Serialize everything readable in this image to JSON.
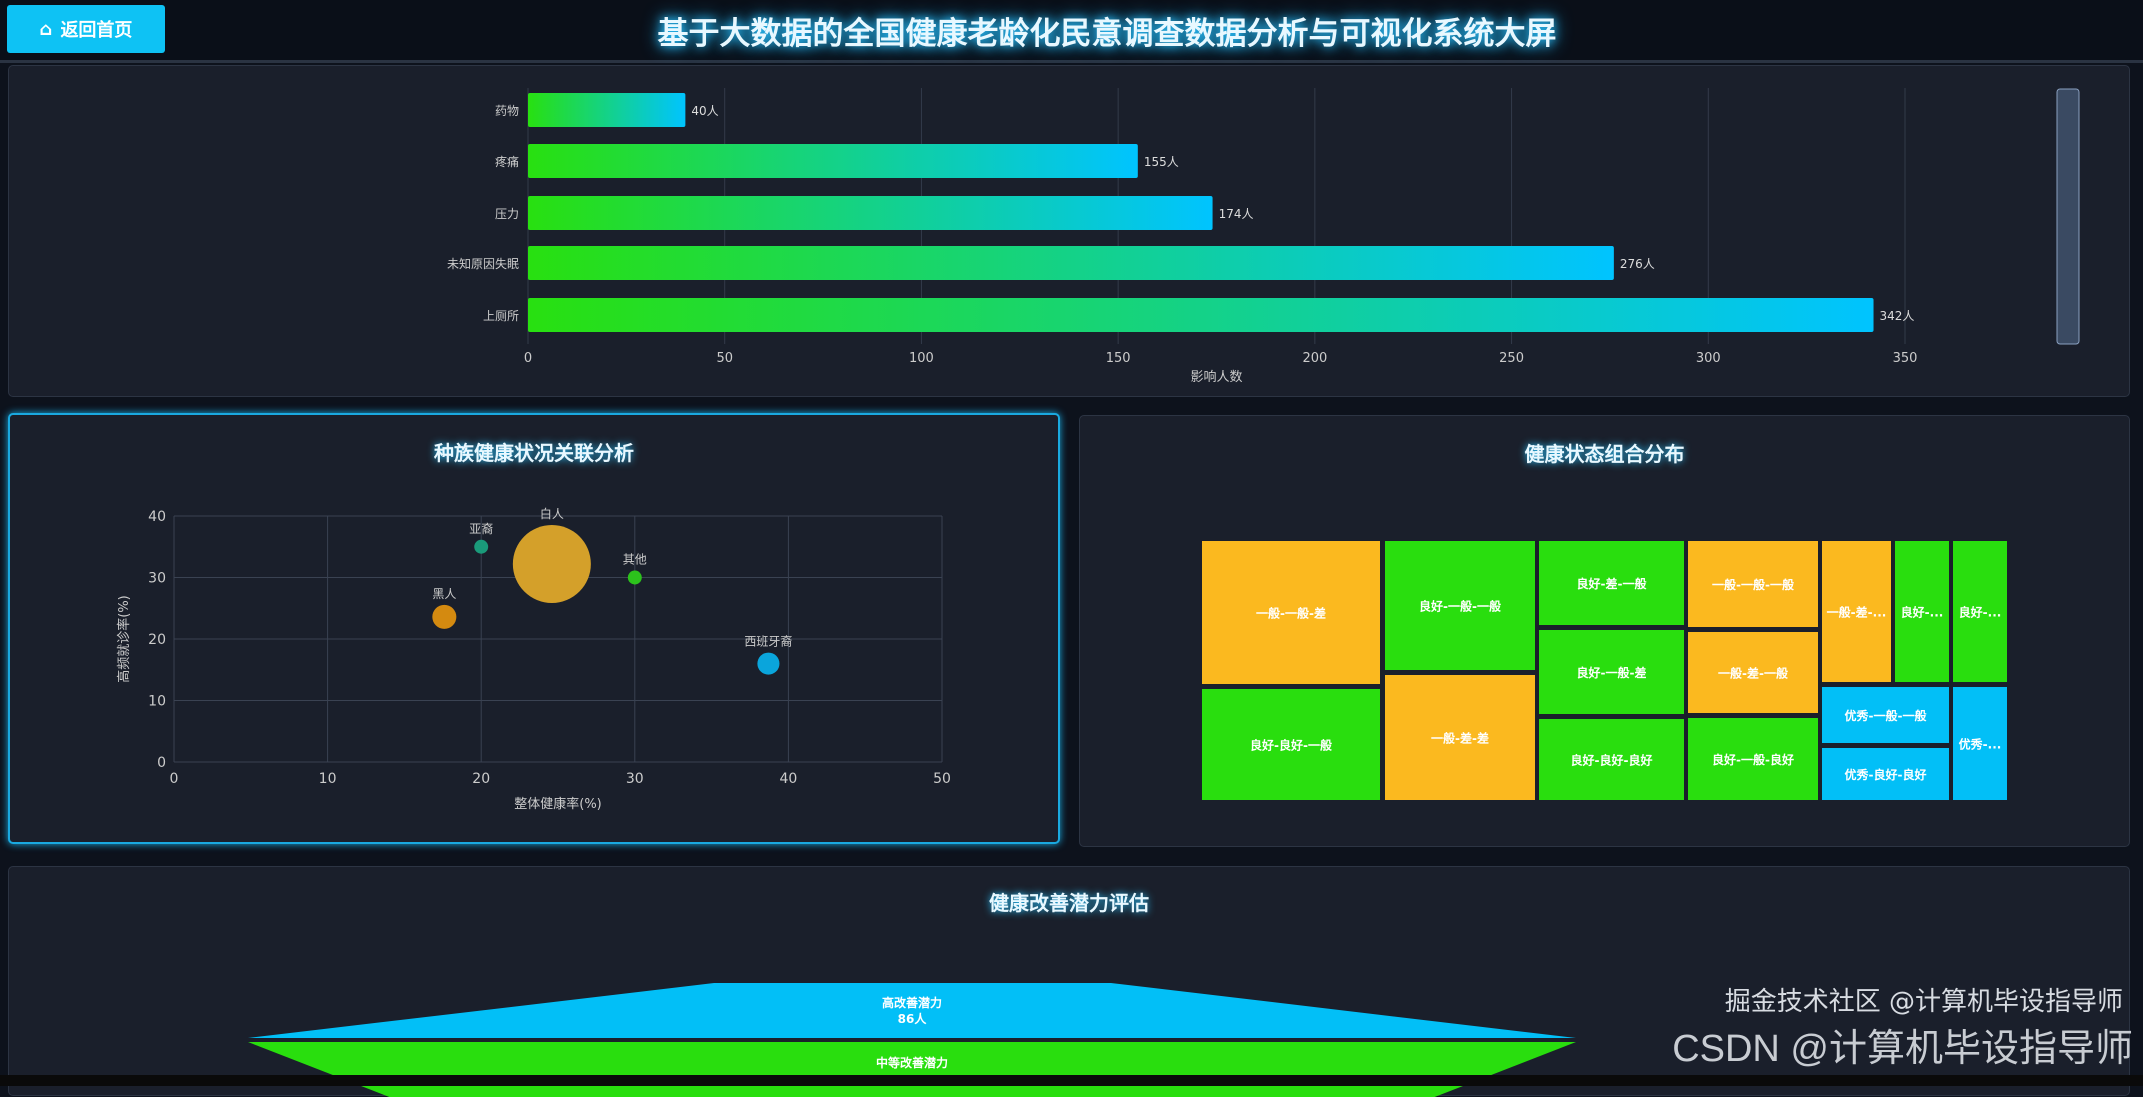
{
  "header": {
    "home_label": "返回首页",
    "home_icon": "home-icon",
    "title": "基于大数据的全国健康老龄化民意调查数据分析与可视化系统大屏"
  },
  "bar_panel": {
    "chart_data": {
      "type": "bar",
      "orientation": "horizontal",
      "categories": [
        "药物",
        "疼痛",
        "压力",
        "未知原因失眠",
        "上厕所"
      ],
      "values": [
        40,
        155,
        174,
        276,
        342
      ],
      "data_labels": [
        "40人",
        "155人",
        "174人",
        "276人",
        "342人"
      ],
      "xlabel": "影响人数",
      "xlim": [
        0,
        350
      ],
      "xticks": [
        "0",
        "50",
        "100",
        "150",
        "200",
        "250",
        "300",
        "350"
      ],
      "gradient": [
        "#28e010",
        "#00c4ff"
      ],
      "grid": true
    }
  },
  "scatter_panel": {
    "title": "种族健康状况关联分析",
    "chart_data": {
      "type": "scatter",
      "xlabel": "整体健康率(%)",
      "ylabel": "高频就诊率(%)",
      "xlim": [
        0,
        50
      ],
      "ylim": [
        0,
        40
      ],
      "xticks": [
        "0",
        "10",
        "20",
        "30",
        "40",
        "50"
      ],
      "yticks": [
        "0",
        "10",
        "20",
        "30",
        "40"
      ],
      "points": [
        {
          "name": "亚裔",
          "x": 20,
          "y": 35,
          "size": 3.2,
          "color": "#1a9a7a"
        },
        {
          "name": "白人",
          "x": 24.6,
          "y": 32.2,
          "size": 100,
          "color": "#d4a02a"
        },
        {
          "name": "其他",
          "x": 30,
          "y": 30,
          "size": 3.2,
          "color": "#2cc21c"
        },
        {
          "name": "黑人",
          "x": 17.6,
          "y": 23.6,
          "size": 9.5,
          "color": "#d48a10"
        },
        {
          "name": "西班牙裔",
          "x": 38.7,
          "y": 16,
          "size": 8,
          "color": "#0aa5dc"
        }
      ],
      "grid": true
    }
  },
  "treemap_panel": {
    "title": "健康状态组合分布",
    "colors": {
      "一般": "#fbb91f",
      "良好": "#29de0e",
      "优秀": "#02bff7"
    },
    "items": [
      {
        "label": "一般-一般-差",
        "group": "一般"
      },
      {
        "label": "良好-良好-一般",
        "group": "良好"
      },
      {
        "label": "良好-一般-一般",
        "group": "良好"
      },
      {
        "label": "一般-差-差",
        "group": "一般"
      },
      {
        "label": "良好-差-一般",
        "group": "良好"
      },
      {
        "label": "良好-一般-差",
        "group": "良好"
      },
      {
        "label": "良好-良好-良好",
        "group": "良好"
      },
      {
        "label": "一般-一般-一般",
        "group": "一般"
      },
      {
        "label": "一般-差-一般",
        "group": "一般"
      },
      {
        "label": "良好-一般-良好",
        "group": "良好"
      },
      {
        "label": "一般-差-...",
        "group": "一般"
      },
      {
        "label": "良好-...",
        "group": "良好"
      },
      {
        "label": "良好-...",
        "group": "良好"
      },
      {
        "label": "优秀-一般-一般",
        "group": "优秀"
      },
      {
        "label": "优秀-良好-良好",
        "group": "优秀"
      },
      {
        "label": "优秀-...",
        "group": "优秀"
      }
    ]
  },
  "funnel_panel": {
    "title": "健康改善潜力评估",
    "stages": [
      {
        "label": "高改善潜力",
        "value": "86人",
        "color": "#02bff7"
      },
      {
        "label": "中等改善潜力",
        "value": "",
        "color": "#29de0e"
      }
    ]
  },
  "watermark": {
    "text1": "CSDN @计算机毕设指导师",
    "text2": "掘金技术社区 @计算机毕设指导师"
  }
}
